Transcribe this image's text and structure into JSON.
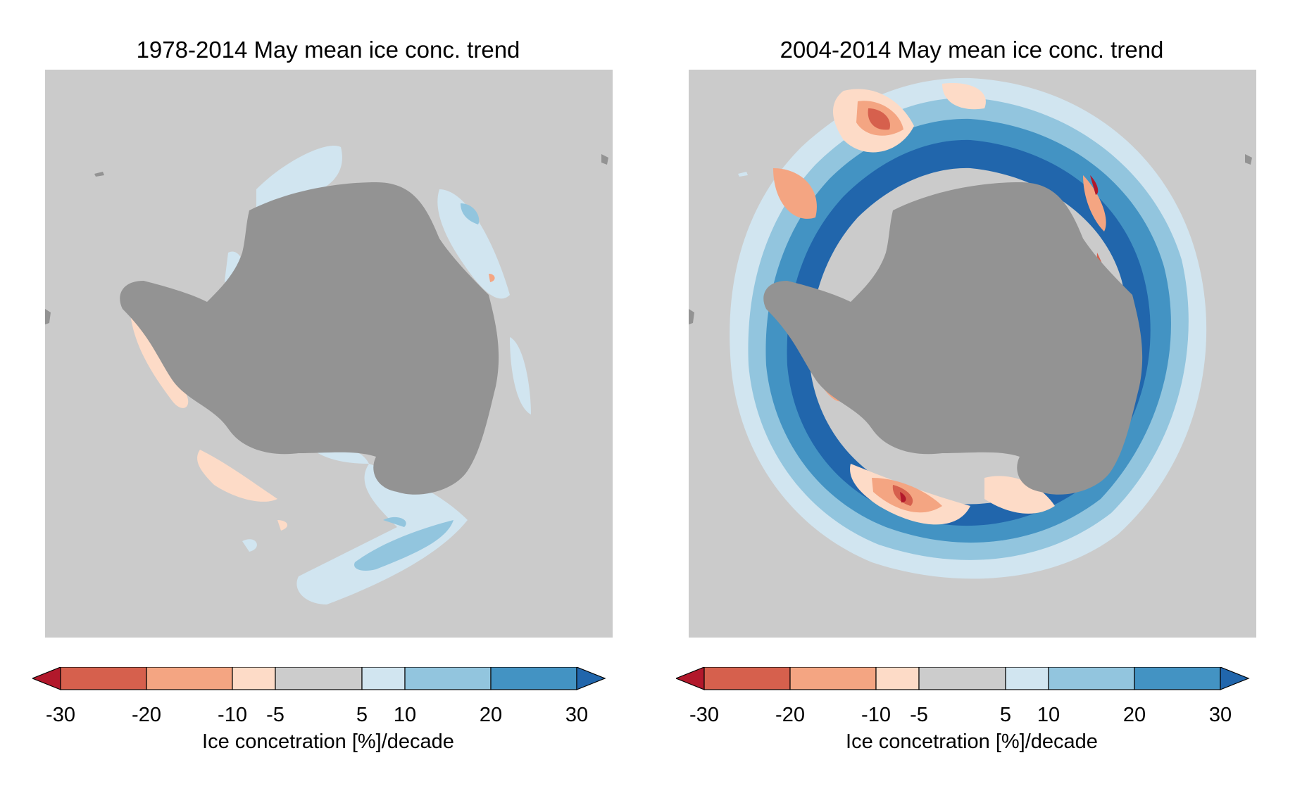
{
  "panels": [
    {
      "title": "1978-2014 May mean ice conc. trend",
      "colorbar": {
        "ticks": [
          "-30",
          "-20",
          "-10",
          "-5",
          "5",
          "10",
          "20",
          "30"
        ],
        "label": "Ice concetration [%]/decade"
      }
    },
    {
      "title": "2004-2014 May mean ice conc. trend",
      "colorbar": {
        "ticks": [
          "-30",
          "-20",
          "-10",
          "-5",
          "5",
          "10",
          "20",
          "30"
        ],
        "label": "Ice concetration [%]/decade"
      }
    }
  ],
  "colors": {
    "ocean": "#cbcbcb",
    "land": "#939393",
    "bins": [
      "#b2182b",
      "#d6604d",
      "#f4a582",
      "#fddbc7",
      "#cccccc",
      "#d1e5f0",
      "#92c5de",
      "#4393c3",
      "#2166ac"
    ]
  }
}
